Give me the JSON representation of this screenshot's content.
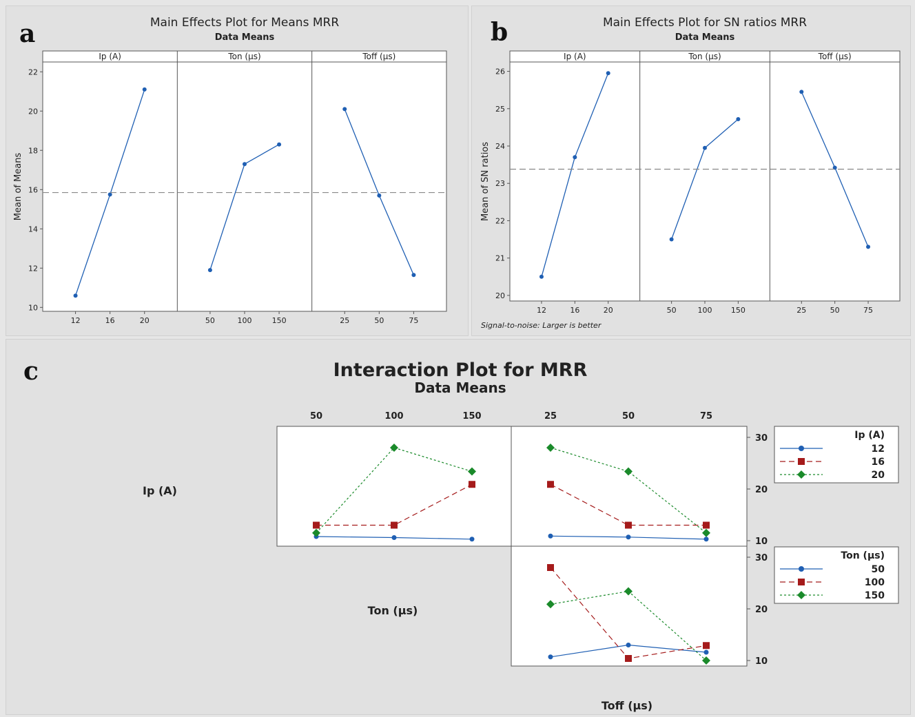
{
  "chart_data": [
    {
      "panel": "a",
      "type": "line",
      "title": "Main Effects Plot for Means MRR",
      "subtitle": "Data Means",
      "ylabel": "Mean of Means",
      "ylim": [
        9.8,
        22.5
      ],
      "yticks": [
        10,
        12,
        14,
        16,
        18,
        20,
        22
      ],
      "reference_line": 15.85,
      "line_color": "#1f5fb3",
      "facets": [
        {
          "name": "Ip (A)",
          "categories": [
            "12",
            "16",
            "20"
          ],
          "values": [
            10.6,
            15.75,
            21.1
          ]
        },
        {
          "name": "Ton (µs)",
          "categories": [
            "50",
            "100",
            "150"
          ],
          "values": [
            11.9,
            17.3,
            18.3
          ]
        },
        {
          "name": "Toff (µs)",
          "categories": [
            "25",
            "50",
            "75"
          ],
          "values": [
            20.1,
            15.7,
            11.65
          ]
        }
      ]
    },
    {
      "panel": "b",
      "type": "line",
      "title": "Main Effects Plot for SN ratios MRR",
      "subtitle": "Data Means",
      "ylabel": "Mean of SN ratios",
      "ylim": [
        19.85,
        26.25
      ],
      "yticks": [
        20,
        21,
        22,
        23,
        24,
        25,
        26
      ],
      "reference_line": 23.38,
      "note": "Signal-to-noise: Larger is better",
      "line_color": "#1f5fb3",
      "facets": [
        {
          "name": "Ip (A)",
          "categories": [
            "12",
            "16",
            "20"
          ],
          "values": [
            20.5,
            23.7,
            25.95
          ]
        },
        {
          "name": "Ton (µs)",
          "categories": [
            "50",
            "100",
            "150"
          ],
          "values": [
            21.5,
            23.95,
            24.72
          ]
        },
        {
          "name": "Toff (µs)",
          "categories": [
            "25",
            "50",
            "75"
          ],
          "values": [
            25.45,
            23.42,
            21.3
          ]
        }
      ]
    },
    {
      "panel": "c",
      "type": "line",
      "title": "Interaction Plot for MRR",
      "subtitle": "Data Means",
      "ylim": [
        10,
        30
      ],
      "yticks": [
        10,
        20,
        30
      ],
      "row_labels": [
        "Ip (A)",
        "Ton (µs)"
      ],
      "col_label": "Toff (µs)",
      "top_x_ticks_left": [
        "50",
        "100",
        "150"
      ],
      "top_x_ticks_right": [
        "25",
        "50",
        "75"
      ],
      "legends": [
        {
          "title": "Ip (A)",
          "entries": [
            "12",
            "16",
            "20"
          ]
        },
        {
          "title": "Ton (µs)",
          "entries": [
            "50",
            "100",
            "150"
          ]
        }
      ],
      "series_styles": [
        {
          "color": "#1f5fb3",
          "marker": "circle",
          "dash": "solid"
        },
        {
          "color": "#a51b1b",
          "marker": "square",
          "dash": "dashed"
        },
        {
          "color": "#1a8a2a",
          "marker": "diamond",
          "dash": "dotted"
        }
      ],
      "cells": [
        {
          "row": "Ip (A)",
          "col": "Ton (µs)",
          "x": [
            "50",
            "100",
            "150"
          ],
          "series": [
            {
              "name": "12",
              "values": [
                10.8,
                10.6,
                10.3
              ]
            },
            {
              "name": "16",
              "values": [
                13.0,
                13.0,
                20.9
              ]
            },
            {
              "name": "20",
              "values": [
                11.5,
                28.0,
                23.4
              ]
            }
          ]
        },
        {
          "row": "Ip (A)",
          "col": "Toff (µs)",
          "x": [
            "25",
            "50",
            "75"
          ],
          "series": [
            {
              "name": "12",
              "values": [
                10.9,
                10.7,
                10.3
              ]
            },
            {
              "name": "16",
              "values": [
                20.9,
                13.0,
                13.0
              ]
            },
            {
              "name": "20",
              "values": [
                28.0,
                23.4,
                11.5
              ]
            }
          ]
        },
        {
          "row": "Ton (µs)",
          "col": "Toff (µs)",
          "x": [
            "25",
            "50",
            "75"
          ],
          "series": [
            {
              "name": "50",
              "values": [
                10.7,
                13.0,
                11.6
              ]
            },
            {
              "name": "100",
              "values": [
                28.0,
                10.4,
                12.9
              ]
            },
            {
              "name": "150",
              "values": [
                20.9,
                23.4,
                10.0
              ]
            }
          ]
        }
      ]
    }
  ]
}
